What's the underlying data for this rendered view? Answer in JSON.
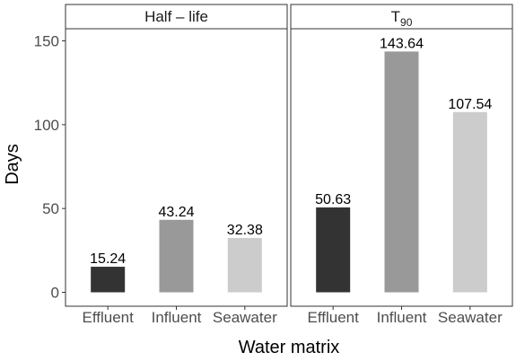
{
  "chart_data": {
    "type": "bar",
    "xlabel": "Water matrix",
    "ylabel": "Days",
    "ylim": [
      0,
      157
    ],
    "yticks": [
      0,
      50,
      100,
      150
    ],
    "grid": false,
    "legend": "none",
    "categories": [
      "Effluent",
      "Influent",
      "Seawater"
    ],
    "category_colors": [
      "#333333",
      "#999999",
      "#cccccc"
    ],
    "panels": [
      {
        "title": "Half – life",
        "values": [
          15.24,
          43.24,
          32.38
        ],
        "labels": [
          "15.24",
          "43.24",
          "32.38"
        ]
      },
      {
        "title_main": "T",
        "title_sub": "90",
        "values": [
          50.63,
          143.64,
          107.54
        ],
        "labels": [
          "50.63",
          "143.64",
          "107.54"
        ]
      }
    ]
  }
}
